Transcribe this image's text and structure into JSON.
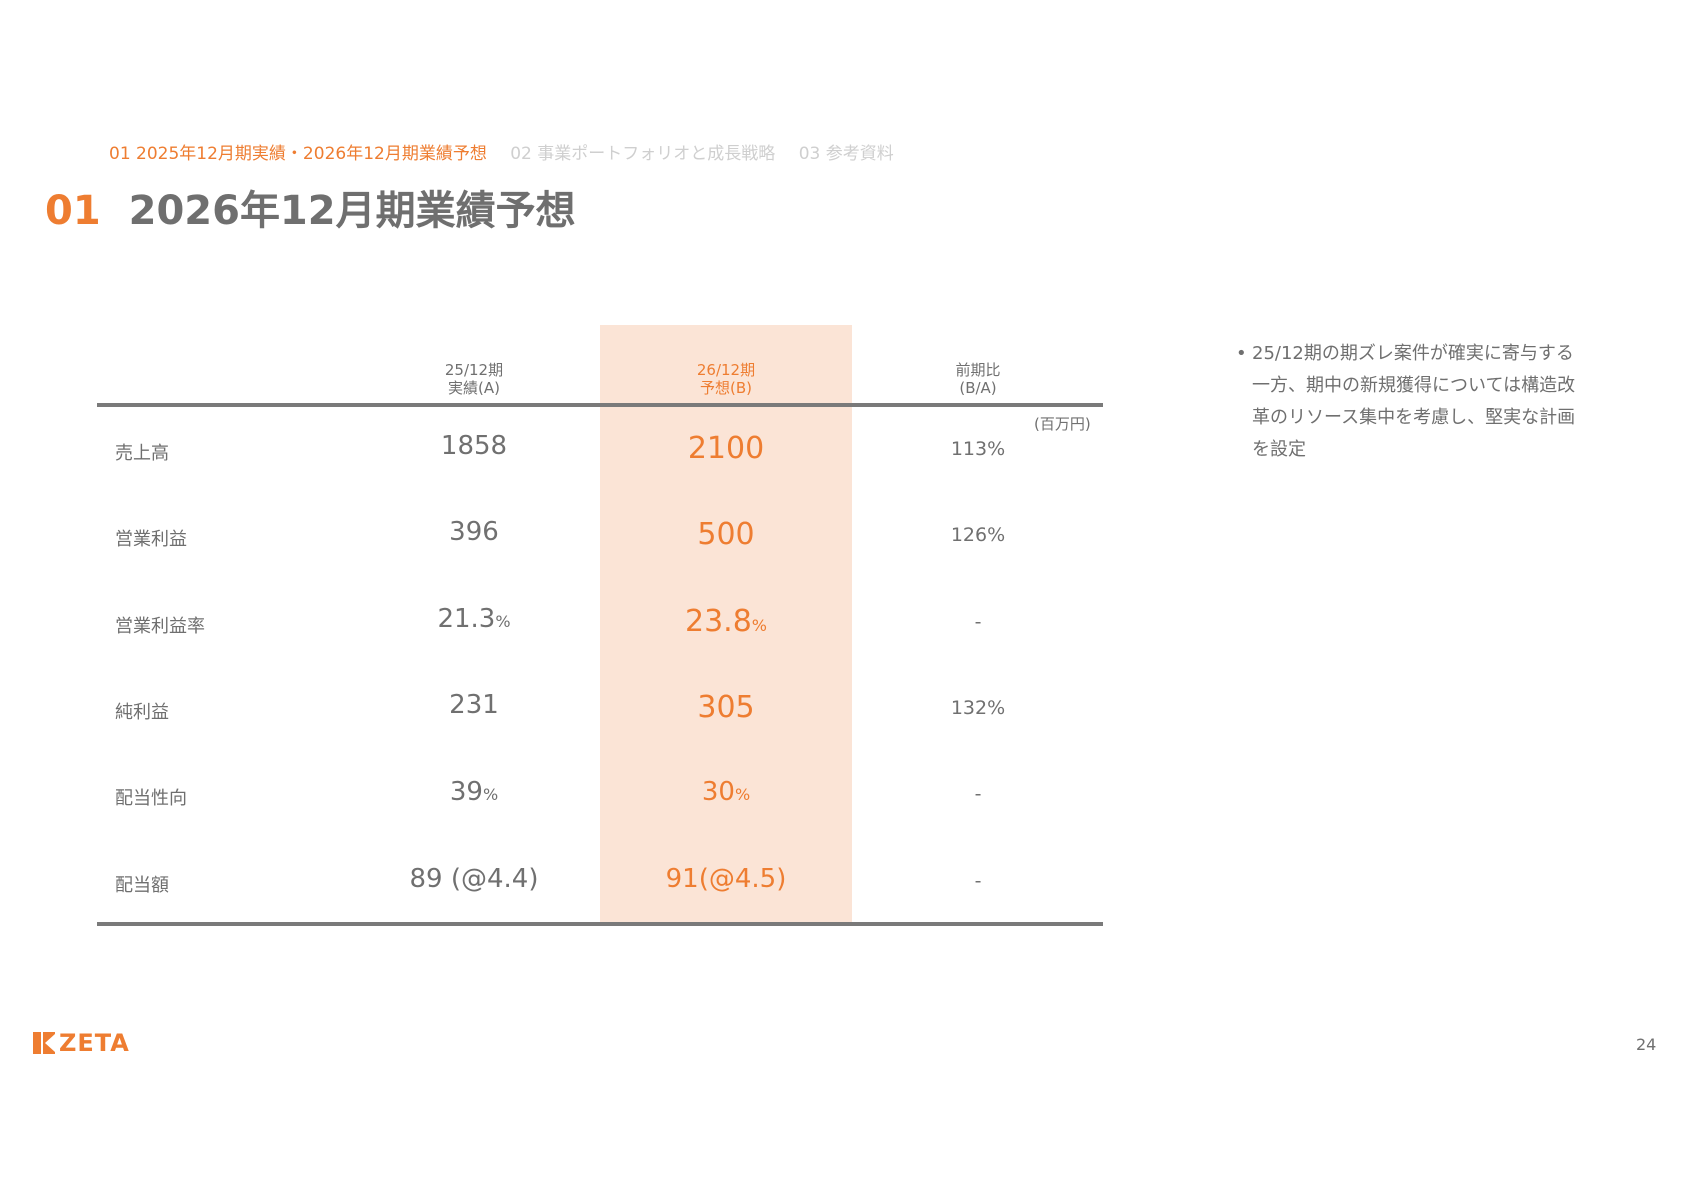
{
  "breadcrumb": {
    "active": "01 2025年12月期実績・2026年12月期業績予想",
    "item2": "02 事業ポートフォリオと成長戦略",
    "item3": "03 参考資料"
  },
  "title": {
    "number": "01",
    "text": "2026年12月期業績予想"
  },
  "table": {
    "headers": {
      "col1": [
        "25/12期",
        "実績(A)"
      ],
      "col2": [
        "26/12期",
        "予想(B)"
      ],
      "col3": [
        "前期比",
        "(B/A)"
      ]
    },
    "unit": "(百万円)",
    "rows": [
      {
        "label": "売上高",
        "actual": "1858",
        "actual_unit": "",
        "forecast": "2100",
        "forecast_unit": "",
        "ratio": "113%"
      },
      {
        "label": "営業利益",
        "actual": "396",
        "actual_unit": "",
        "forecast": "500",
        "forecast_unit": "",
        "ratio": "126%"
      },
      {
        "label": "営業利益率",
        "actual": "21.3",
        "actual_unit": "%",
        "forecast": "23.8",
        "forecast_unit": "%",
        "ratio": "-"
      },
      {
        "label": "純利益",
        "actual": "231",
        "actual_unit": "",
        "forecast": "305",
        "forecast_unit": "",
        "ratio": "132%"
      },
      {
        "label": "配当性向",
        "actual": "39",
        "actual_unit": "%",
        "forecast": "30",
        "forecast_unit": "%",
        "ratio": "-"
      },
      {
        "label": "配当額",
        "actual": "89 (@4.4)",
        "actual_unit": "",
        "forecast": "91(@4.5)",
        "forecast_unit": "",
        "ratio": "-"
      }
    ]
  },
  "note": {
    "bullet": "•",
    "text": "25/12期の期ズレ案件が確実に寄与する一方、期中の新規獲得については構造改革のリソース集中を考慮し、堅実な計画を設定"
  },
  "footer": {
    "logo": "ZETA",
    "page_number": "24"
  },
  "colors": {
    "accent": "#ee7d31",
    "highlight": "#fbe4d6",
    "text": "#707070",
    "rule": "#7a7a7a"
  }
}
